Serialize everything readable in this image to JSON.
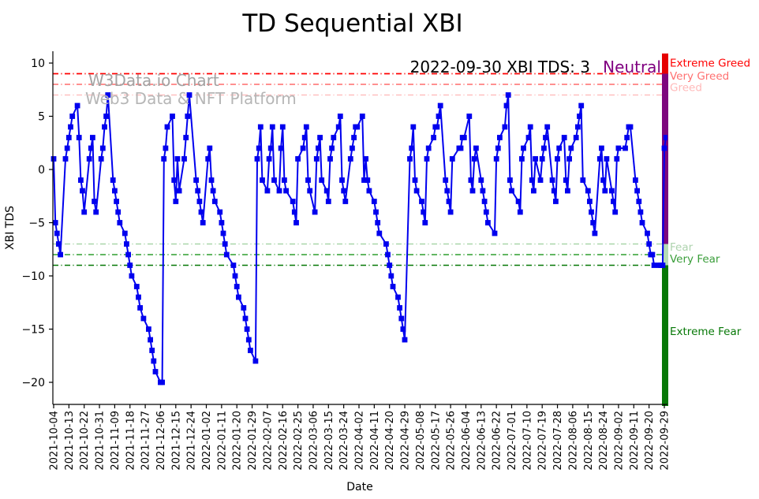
{
  "title": "TD Sequential XBI",
  "watermark": {
    "line1": "W3Data.io Chart",
    "line2": "Web3 Data & NFT Platform"
  },
  "annotation": {
    "text": "2022-09-30 XBI TDS: 3",
    "status": "Neutral",
    "status_color": "#800080"
  },
  "axes": {
    "ylabel": "XBI TDS",
    "xlabel": "Date",
    "yticks": [
      {
        "label": "10",
        "value": 10
      },
      {
        "label": "5",
        "value": 5
      },
      {
        "label": "0",
        "value": 0
      },
      {
        "label": "−5",
        "value": -5
      },
      {
        "label": "−10",
        "value": -10
      },
      {
        "label": "−15",
        "value": -15
      },
      {
        "label": "−20",
        "value": -20
      }
    ],
    "xticks": [
      "2021-10-04",
      "2021-10-13",
      "2021-10-22",
      "2021-10-31",
      "2021-11-09",
      "2021-11-18",
      "2021-11-27",
      "2021-12-06",
      "2021-12-15",
      "2021-12-24",
      "2022-01-02",
      "2022-01-11",
      "2022-01-20",
      "2022-01-29",
      "2022-02-07",
      "2022-02-16",
      "2022-02-25",
      "2022-03-06",
      "2022-03-15",
      "2022-03-24",
      "2022-04-02",
      "2022-04-11",
      "2022-04-20",
      "2022-04-29",
      "2022-05-08",
      "2022-05-17",
      "2022-05-26",
      "2022-06-04",
      "2022-06-13",
      "2022-06-22",
      "2022-07-01",
      "2022-07-10",
      "2022-07-19",
      "2022-07-28",
      "2022-08-06",
      "2022-08-15",
      "2022-08-24",
      "2022-09-02",
      "2022-09-11",
      "2022-09-20",
      "2022-09-29"
    ]
  },
  "thresholds": [
    {
      "label": "Extreme Greed",
      "value": 9,
      "line_color": "#ff0000",
      "label_color": "#ff0000"
    },
    {
      "label": "Very Greed",
      "value": 8,
      "line_color": "#ff6b6b",
      "label_color": "#ff7070"
    },
    {
      "label": "Greed",
      "value": 7,
      "line_color": "#ffc0c0",
      "label_color": "#ffb9b9"
    },
    {
      "label": "Fear",
      "value": -7,
      "line_color": "#a9d6a9",
      "label_color": "#aed3ae"
    },
    {
      "label": "Very Fear",
      "value": -8,
      "line_color": "#2f9e2f",
      "label_color": "#3b9e3b"
    },
    {
      "label": "Extreme Fear",
      "value": -9,
      "line_color": "#067806",
      "label_color": "#067806"
    }
  ],
  "sentiment_bar": {
    "segments": [
      {
        "zone": "greed",
        "color": "#e60000",
        "from_value": 10.9,
        "to_value": 9
      },
      {
        "zone": "neutral",
        "color": "#7d067d",
        "from_value": 9,
        "to_value": -7
      },
      {
        "zone": "fear",
        "color": "#b5dcb5",
        "from_value": -7,
        "to_value": -9
      },
      {
        "zone": "extreme-fear",
        "color": "#067806",
        "from_value": -9,
        "to_value": -22.3
      }
    ]
  },
  "chart_data": {
    "type": "line",
    "title": "TD Sequential XBI",
    "xlabel": "Date",
    "ylabel": "XBI TDS",
    "ylim": [
      -21.8,
      11
    ],
    "x_range": [
      "2021-10-04",
      "2022-09-30"
    ],
    "grid": false,
    "series": [
      {
        "name": "XBI TDS",
        "color": "#0000ee",
        "marker": "square",
        "points": [
          [
            "2021-10-04",
            1
          ],
          [
            "2021-10-05",
            -5
          ],
          [
            "2021-10-06",
            -6
          ],
          [
            "2021-10-07",
            -7
          ],
          [
            "2021-10-08",
            -8
          ],
          [
            "2021-10-11",
            1
          ],
          [
            "2021-10-12",
            2
          ],
          [
            "2021-10-13",
            3
          ],
          [
            "2021-10-14",
            4
          ],
          [
            "2021-10-15",
            5
          ],
          [
            "2021-10-18",
            6
          ],
          [
            "2021-10-19",
            3
          ],
          [
            "2021-10-20",
            -1
          ],
          [
            "2021-10-21",
            -2
          ],
          [
            "2021-10-22",
            -4
          ],
          [
            "2021-10-25",
            1
          ],
          [
            "2021-10-26",
            2
          ],
          [
            "2021-10-27",
            3
          ],
          [
            "2021-10-28",
            -3
          ],
          [
            "2021-10-29",
            -4
          ],
          [
            "2021-11-01",
            1
          ],
          [
            "2021-11-02",
            2
          ],
          [
            "2021-11-03",
            4
          ],
          [
            "2021-11-04",
            5
          ],
          [
            "2021-11-05",
            7
          ],
          [
            "2021-11-08",
            -1
          ],
          [
            "2021-11-09",
            -2
          ],
          [
            "2021-11-10",
            -3
          ],
          [
            "2021-11-11",
            -4
          ],
          [
            "2021-11-12",
            -5
          ],
          [
            "2021-11-15",
            -6
          ],
          [
            "2021-11-16",
            -7
          ],
          [
            "2021-11-17",
            -8
          ],
          [
            "2021-11-18",
            -9
          ],
          [
            "2021-11-19",
            -10
          ],
          [
            "2021-11-22",
            -11
          ],
          [
            "2021-11-23",
            -12
          ],
          [
            "2021-11-24",
            -13
          ],
          [
            "2021-11-26",
            -14
          ],
          [
            "2021-11-29",
            -15
          ],
          [
            "2021-11-30",
            -16
          ],
          [
            "2021-12-01",
            -17
          ],
          [
            "2021-12-02",
            -18
          ],
          [
            "2021-12-03",
            -19
          ],
          [
            "2021-12-06",
            -20
          ],
          [
            "2021-12-07",
            -20
          ],
          [
            "2021-12-08",
            1
          ],
          [
            "2021-12-09",
            2
          ],
          [
            "2021-12-10",
            4
          ],
          [
            "2021-12-13",
            5
          ],
          [
            "2021-12-14",
            -1
          ],
          [
            "2021-12-15",
            -3
          ],
          [
            "2021-12-16",
            1
          ],
          [
            "2021-12-17",
            -2
          ],
          [
            "2021-12-20",
            1
          ],
          [
            "2021-12-21",
            3
          ],
          [
            "2021-12-22",
            5
          ],
          [
            "2021-12-23",
            7
          ],
          [
            "2021-12-27",
            -1
          ],
          [
            "2021-12-28",
            -2
          ],
          [
            "2021-12-29",
            -3
          ],
          [
            "2021-12-30",
            -4
          ],
          [
            "2021-12-31",
            -5
          ],
          [
            "2022-01-03",
            1
          ],
          [
            "2022-01-04",
            2
          ],
          [
            "2022-01-05",
            -1
          ],
          [
            "2022-01-06",
            -2
          ],
          [
            "2022-01-07",
            -3
          ],
          [
            "2022-01-10",
            -4
          ],
          [
            "2022-01-11",
            -5
          ],
          [
            "2022-01-12",
            -6
          ],
          [
            "2022-01-13",
            -7
          ],
          [
            "2022-01-14",
            -8
          ],
          [
            "2022-01-18",
            -9
          ],
          [
            "2022-01-19",
            -10
          ],
          [
            "2022-01-20",
            -11
          ],
          [
            "2022-01-21",
            -12
          ],
          [
            "2022-01-24",
            -13
          ],
          [
            "2022-01-25",
            -14
          ],
          [
            "2022-01-26",
            -15
          ],
          [
            "2022-01-27",
            -16
          ],
          [
            "2022-01-28",
            -17
          ],
          [
            "2022-01-31",
            -18
          ],
          [
            "2022-02-01",
            1
          ],
          [
            "2022-02-02",
            2
          ],
          [
            "2022-02-03",
            4
          ],
          [
            "2022-02-04",
            -1
          ],
          [
            "2022-02-07",
            -2
          ],
          [
            "2022-02-08",
            1
          ],
          [
            "2022-02-09",
            2
          ],
          [
            "2022-02-10",
            4
          ],
          [
            "2022-02-11",
            -1
          ],
          [
            "2022-02-14",
            -2
          ],
          [
            "2022-02-15",
            2
          ],
          [
            "2022-02-16",
            4
          ],
          [
            "2022-02-17",
            -1
          ],
          [
            "2022-02-18",
            -2
          ],
          [
            "2022-02-22",
            -3
          ],
          [
            "2022-02-23",
            -4
          ],
          [
            "2022-02-24",
            -5
          ],
          [
            "2022-02-25",
            1
          ],
          [
            "2022-02-28",
            2
          ],
          [
            "2022-03-01",
            3
          ],
          [
            "2022-03-02",
            4
          ],
          [
            "2022-03-03",
            -1
          ],
          [
            "2022-03-04",
            -2
          ],
          [
            "2022-03-07",
            -4
          ],
          [
            "2022-03-08",
            1
          ],
          [
            "2022-03-09",
            2
          ],
          [
            "2022-03-10",
            3
          ],
          [
            "2022-03-11",
            -1
          ],
          [
            "2022-03-14",
            -2
          ],
          [
            "2022-03-15",
            -3
          ],
          [
            "2022-03-16",
            1
          ],
          [
            "2022-03-17",
            2
          ],
          [
            "2022-03-18",
            3
          ],
          [
            "2022-03-21",
            4
          ],
          [
            "2022-03-22",
            5
          ],
          [
            "2022-03-23",
            -1
          ],
          [
            "2022-03-24",
            -2
          ],
          [
            "2022-03-25",
            -3
          ],
          [
            "2022-03-28",
            1
          ],
          [
            "2022-03-29",
            2
          ],
          [
            "2022-03-30",
            3
          ],
          [
            "2022-03-31",
            4
          ],
          [
            "2022-04-01",
            4
          ],
          [
            "2022-04-04",
            5
          ],
          [
            "2022-04-05",
            -1
          ],
          [
            "2022-04-06",
            1
          ],
          [
            "2022-04-07",
            -1
          ],
          [
            "2022-04-08",
            -2
          ],
          [
            "2022-04-11",
            -3
          ],
          [
            "2022-04-12",
            -4
          ],
          [
            "2022-04-13",
            -5
          ],
          [
            "2022-04-14",
            -6
          ],
          [
            "2022-04-18",
            -7
          ],
          [
            "2022-04-19",
            -8
          ],
          [
            "2022-04-20",
            -9
          ],
          [
            "2022-04-21",
            -10
          ],
          [
            "2022-04-22",
            -11
          ],
          [
            "2022-04-25",
            -12
          ],
          [
            "2022-04-26",
            -13
          ],
          [
            "2022-04-27",
            -14
          ],
          [
            "2022-04-28",
            -15
          ],
          [
            "2022-04-29",
            -16
          ],
          [
            "2022-05-02",
            1
          ],
          [
            "2022-05-03",
            2
          ],
          [
            "2022-05-04",
            4
          ],
          [
            "2022-05-05",
            -1
          ],
          [
            "2022-05-06",
            -2
          ],
          [
            "2022-05-09",
            -3
          ],
          [
            "2022-05-10",
            -4
          ],
          [
            "2022-05-11",
            -5
          ],
          [
            "2022-05-12",
            1
          ],
          [
            "2022-05-13",
            2
          ],
          [
            "2022-05-16",
            3
          ],
          [
            "2022-05-17",
            4
          ],
          [
            "2022-05-18",
            4
          ],
          [
            "2022-05-19",
            5
          ],
          [
            "2022-05-20",
            6
          ],
          [
            "2022-05-23",
            -1
          ],
          [
            "2022-05-24",
            -2
          ],
          [
            "2022-05-25",
            -3
          ],
          [
            "2022-05-26",
            -4
          ],
          [
            "2022-05-27",
            1
          ],
          [
            "2022-05-31",
            2
          ],
          [
            "2022-06-01",
            2
          ],
          [
            "2022-06-02",
            3
          ],
          [
            "2022-06-03",
            3
          ],
          [
            "2022-06-06",
            5
          ],
          [
            "2022-06-07",
            -1
          ],
          [
            "2022-06-08",
            -2
          ],
          [
            "2022-06-09",
            1
          ],
          [
            "2022-06-10",
            2
          ],
          [
            "2022-06-13",
            -1
          ],
          [
            "2022-06-14",
            -2
          ],
          [
            "2022-06-15",
            -3
          ],
          [
            "2022-06-16",
            -4
          ],
          [
            "2022-06-17",
            -5
          ],
          [
            "2022-06-21",
            -6
          ],
          [
            "2022-06-22",
            1
          ],
          [
            "2022-06-23",
            2
          ],
          [
            "2022-06-24",
            3
          ],
          [
            "2022-06-27",
            4
          ],
          [
            "2022-06-28",
            6
          ],
          [
            "2022-06-29",
            7
          ],
          [
            "2022-06-30",
            -1
          ],
          [
            "2022-07-01",
            -2
          ],
          [
            "2022-07-05",
            -3
          ],
          [
            "2022-07-06",
            -4
          ],
          [
            "2022-07-07",
            1
          ],
          [
            "2022-07-08",
            2
          ],
          [
            "2022-07-11",
            3
          ],
          [
            "2022-07-12",
            4
          ],
          [
            "2022-07-13",
            -1
          ],
          [
            "2022-07-14",
            -2
          ],
          [
            "2022-07-15",
            1
          ],
          [
            "2022-07-18",
            -1
          ],
          [
            "2022-07-19",
            1
          ],
          [
            "2022-07-20",
            2
          ],
          [
            "2022-07-21",
            3
          ],
          [
            "2022-07-22",
            4
          ],
          [
            "2022-07-25",
            -1
          ],
          [
            "2022-07-26",
            -2
          ],
          [
            "2022-07-27",
            -3
          ],
          [
            "2022-07-28",
            1
          ],
          [
            "2022-07-29",
            2
          ],
          [
            "2022-08-01",
            3
          ],
          [
            "2022-08-02",
            -1
          ],
          [
            "2022-08-03",
            -2
          ],
          [
            "2022-08-04",
            1
          ],
          [
            "2022-08-05",
            2
          ],
          [
            "2022-08-08",
            3
          ],
          [
            "2022-08-09",
            4
          ],
          [
            "2022-08-10",
            5
          ],
          [
            "2022-08-11",
            6
          ],
          [
            "2022-08-12",
            -1
          ],
          [
            "2022-08-15",
            -2
          ],
          [
            "2022-08-16",
            -3
          ],
          [
            "2022-08-17",
            -4
          ],
          [
            "2022-08-18",
            -5
          ],
          [
            "2022-08-19",
            -6
          ],
          [
            "2022-08-22",
            1
          ],
          [
            "2022-08-23",
            2
          ],
          [
            "2022-08-24",
            -1
          ],
          [
            "2022-08-25",
            -2
          ],
          [
            "2022-08-26",
            1
          ],
          [
            "2022-08-29",
            -2
          ],
          [
            "2022-08-30",
            -3
          ],
          [
            "2022-08-31",
            -4
          ],
          [
            "2022-09-01",
            1
          ],
          [
            "2022-09-02",
            2
          ],
          [
            "2022-09-06",
            2
          ],
          [
            "2022-09-07",
            3
          ],
          [
            "2022-09-08",
            4
          ],
          [
            "2022-09-09",
            4
          ],
          [
            "2022-09-12",
            -1
          ],
          [
            "2022-09-13",
            -2
          ],
          [
            "2022-09-14",
            -3
          ],
          [
            "2022-09-15",
            -4
          ],
          [
            "2022-09-16",
            -5
          ],
          [
            "2022-09-19",
            -6
          ],
          [
            "2022-09-20",
            -7
          ],
          [
            "2022-09-21",
            -8
          ],
          [
            "2022-09-22",
            -8
          ],
          [
            "2022-09-23",
            -9
          ],
          [
            "2022-09-26",
            -9
          ],
          [
            "2022-09-27",
            -9
          ],
          [
            "2022-09-28",
            -9
          ],
          [
            "2022-09-29",
            2
          ],
          [
            "2022-09-30",
            3
          ]
        ]
      }
    ]
  }
}
